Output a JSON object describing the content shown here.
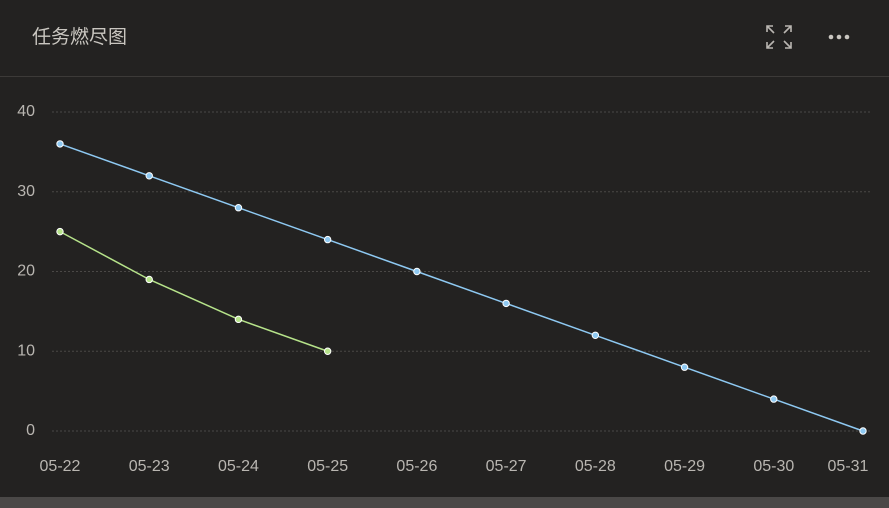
{
  "title": "任务燃尽图",
  "chart_data": {
    "type": "line",
    "categories": [
      "05-22",
      "05-23",
      "05-24",
      "05-25",
      "05-26",
      "05-27",
      "05-28",
      "05-29",
      "05-30",
      "05-31"
    ],
    "series": [
      {
        "color": "#8ec9f2",
        "values": [
          36,
          32,
          28,
          24,
          20,
          16,
          12,
          8,
          4,
          0
        ]
      },
      {
        "color": "#b6e38a",
        "values": [
          25,
          19,
          14,
          10,
          null,
          null,
          null,
          null,
          null,
          null
        ]
      }
    ],
    "ylim": [
      0,
      40
    ],
    "yticks": [
      0,
      10,
      20,
      30,
      40
    ],
    "grid": true
  }
}
